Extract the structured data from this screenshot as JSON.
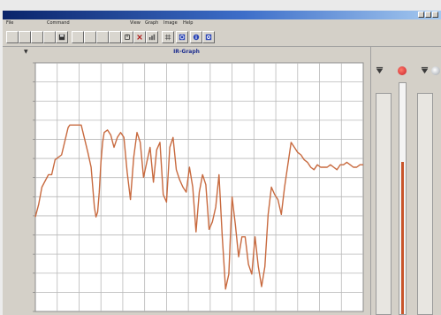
{
  "window": {
    "title": "",
    "controls": [
      "minimize",
      "maximize",
      "close"
    ]
  },
  "menu": [
    {
      "label": "File"
    },
    {
      "label": "Command"
    },
    {
      "label": "View"
    },
    {
      "label": "Graph"
    },
    {
      "label": "Image"
    },
    {
      "label": "Help"
    }
  ],
  "toolbar": {
    "buttons": [
      {
        "icon": "blank-icon"
      },
      {
        "icon": "blank-icon"
      },
      {
        "icon": "blank-icon"
      },
      {
        "icon": "blank-icon"
      },
      {
        "icon": "save-icon"
      },
      {
        "icon": "blank-icon"
      },
      {
        "icon": "blank-icon"
      },
      {
        "icon": "blank-icon"
      },
      {
        "icon": "blank-icon"
      },
      {
        "icon": "export-icon"
      },
      {
        "icon": "delete-icon"
      },
      {
        "icon": "chart-icon"
      },
      {
        "icon": "grid-icon"
      },
      {
        "icon": "zoom-icon"
      },
      {
        "icon": "info-icon"
      },
      {
        "icon": "stats-icon"
      }
    ]
  },
  "chart_header": {
    "title": "IR-Graph",
    "left_mark": "▼"
  },
  "chart_data": {
    "type": "line",
    "title": "IR-Graph",
    "xlabel": "",
    "ylabel": "",
    "x_tick_labels": [],
    "y_tick_labels": [],
    "y_units": "unlabeled (0 = bottom of plot, 100 = top)",
    "ylim": [
      0,
      100
    ],
    "grid": true,
    "series": [
      {
        "name": "",
        "color": "#c86a3f",
        "x": [
          0,
          1,
          2,
          4,
          5,
          6,
          8,
          10,
          10.5,
          11,
          12,
          13,
          14,
          16,
          17,
          18,
          18.5,
          19,
          19.5,
          20,
          20.5,
          21,
          22,
          23,
          24,
          25,
          26,
          27,
          28,
          29,
          30,
          31,
          32,
          33,
          34,
          35,
          36,
          37,
          38,
          39,
          40,
          41,
          42,
          43,
          44,
          45,
          46,
          47,
          48,
          49,
          50,
          51,
          52,
          53,
          54,
          55,
          56,
          57,
          57.5,
          58,
          59,
          60,
          61,
          62,
          63,
          64,
          65,
          66,
          67,
          68,
          69,
          70,
          71,
          72,
          73,
          74,
          75,
          76,
          77,
          78,
          79,
          80,
          81,
          82,
          83,
          84,
          85,
          86,
          87,
          88,
          89,
          90,
          91,
          92,
          93,
          94,
          95,
          96,
          97,
          98,
          99,
          100
        ],
        "y": [
          38,
          43,
          50,
          55,
          55,
          61,
          63,
          74,
          75,
          75,
          75,
          75,
          75,
          64,
          58,
          42,
          38,
          40,
          48,
          60,
          68,
          72,
          73,
          71,
          66,
          70,
          72,
          70,
          56,
          45,
          62,
          72,
          68,
          54,
          60,
          66,
          52,
          65,
          68,
          47,
          44,
          66,
          70,
          57,
          53,
          50,
          48,
          58,
          50,
          32,
          48,
          55,
          51,
          33,
          36,
          42,
          55,
          30,
          20,
          9,
          15,
          46,
          35,
          22,
          30,
          30,
          19,
          15,
          30,
          18,
          10,
          18,
          39,
          50,
          47,
          45,
          39,
          50,
          59,
          68,
          66,
          64,
          63,
          61,
          60,
          58,
          57,
          59,
          58,
          58,
          58,
          59,
          58,
          57,
          59,
          59,
          60,
          59,
          58,
          58,
          59,
          59
        ]
      }
    ]
  },
  "plot": {
    "y_axis_title": ""
  },
  "side_panel": {
    "header_left": "",
    "header_right": "",
    "scale_left": [],
    "scale_right": [],
    "level_fraction": 0.66,
    "accent_color": "#c8552b"
  }
}
